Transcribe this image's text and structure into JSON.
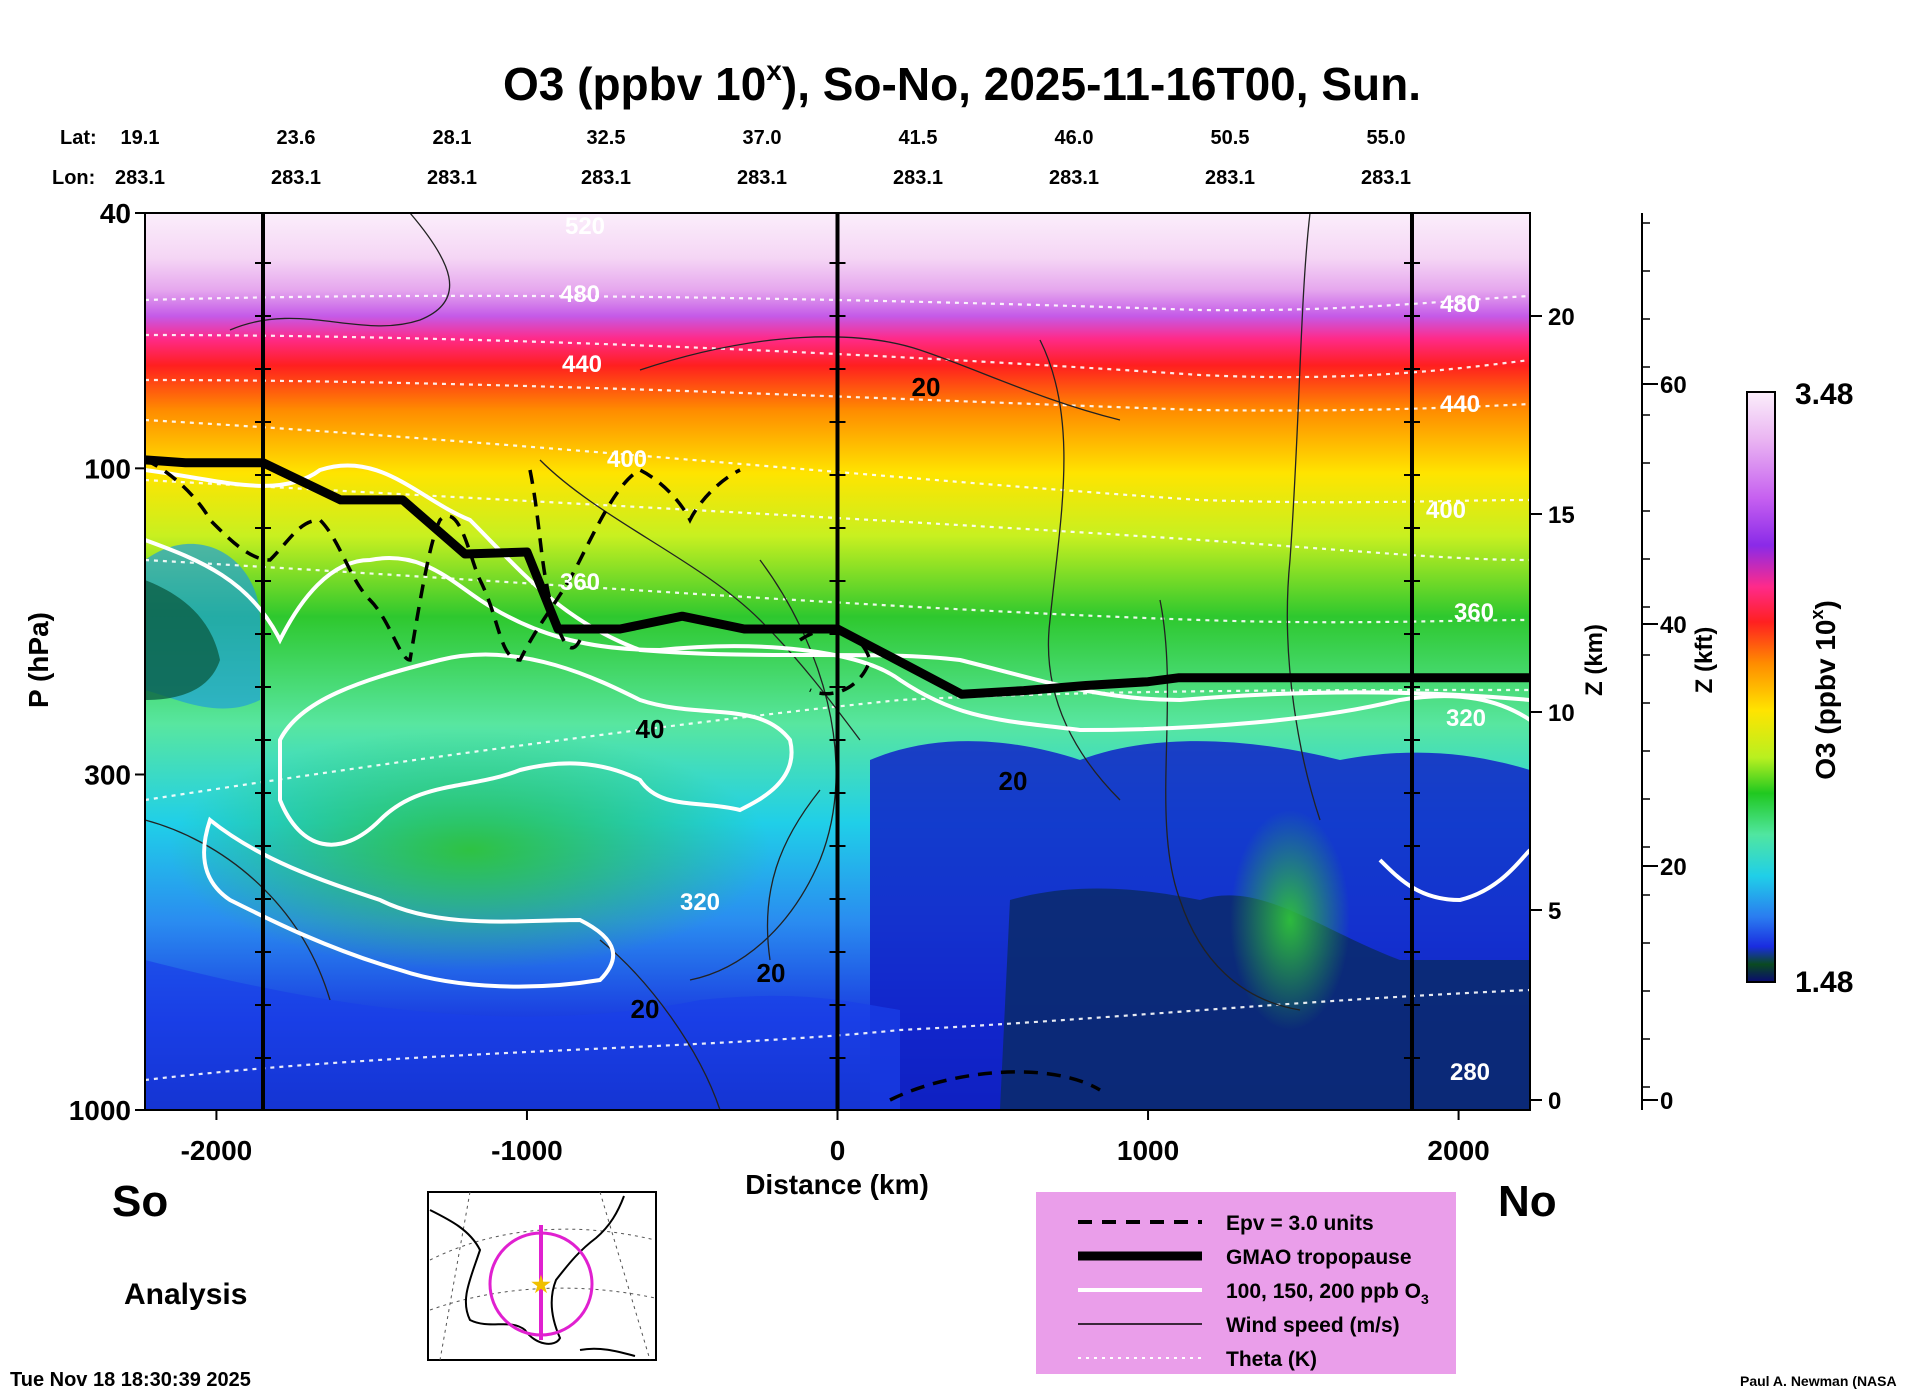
{
  "chart_data": {
    "type": "contour",
    "title": "O3 (ppbv 10",
    "title_sup": "x",
    "title_rest": "), So-No, 2025-11-16T00, Sun.",
    "lat_label": "Lat:",
    "lon_label": "Lon:",
    "lats": [
      "19.1",
      "23.6",
      "28.1",
      "32.5",
      "37.0",
      "41.5",
      "46.0",
      "50.5",
      "55.0"
    ],
    "lons": [
      "283.1",
      "283.1",
      "283.1",
      "283.1",
      "283.1",
      "283.1",
      "283.1",
      "283.1",
      "283.1"
    ],
    "xlabel": "Distance (km)",
    "ylabel": "P (hPa)",
    "xlim": [
      -2230,
      2230
    ],
    "x_ticks": [
      -2000,
      -1000,
      0,
      1000,
      2000
    ],
    "x_tick_labels": [
      "-2000",
      "-1000",
      "0",
      "1000",
      "2000"
    ],
    "ylim": [
      1000,
      40
    ],
    "y_ticks": [
      1000,
      300,
      100,
      40
    ],
    "y_tick_labels": [
      "1000",
      "300",
      "100",
      "40"
    ],
    "z_km_label": "Z (km)",
    "z_km_ticks": [
      "0",
      "5",
      "10",
      "15",
      "20"
    ],
    "z_kft_label": "Z (kft)",
    "z_kft_ticks": [
      "0",
      "20",
      "40",
      "60"
    ],
    "colorbar_label": "O3 (ppbv 10",
    "colorbar_sup": "x",
    "colorbar_close": ")",
    "colorbar_max": "3.48",
    "colorbar_min": "1.48",
    "colorbar_range": [
      1.48,
      3.48
    ],
    "vertical_markers_km": [
      -1850,
      0,
      1850
    ],
    "tropopause": [
      [
        -2230,
        97
      ],
      [
        -2100,
        98
      ],
      [
        -1850,
        98
      ],
      [
        -1600,
        112
      ],
      [
        -1400,
        112
      ],
      [
        -1200,
        136
      ],
      [
        -1000,
        135
      ],
      [
        -900,
        178
      ],
      [
        -700,
        178
      ],
      [
        -500,
        170
      ],
      [
        -300,
        178
      ],
      [
        0,
        178
      ],
      [
        200,
        200
      ],
      [
        400,
        225
      ],
      [
        600,
        222
      ],
      [
        800,
        218
      ],
      [
        1000,
        215
      ],
      [
        1100,
        212
      ],
      [
        1400,
        212
      ],
      [
        1800,
        212
      ],
      [
        2230,
        212
      ]
    ],
    "theta_labels": [
      "520",
      "480",
      "440",
      "400",
      "360",
      "320",
      "280"
    ],
    "theta_labels_right": [
      "480",
      "440",
      "400",
      "360",
      "320",
      "280"
    ],
    "wind_labels": [
      "20",
      "20",
      "40",
      "20",
      "20"
    ],
    "endpoints": {
      "south": "So",
      "north": "No"
    },
    "mode_label": "Analysis",
    "legend": [
      {
        "label": "Epv = 3.0 units",
        "style": "dashed"
      },
      {
        "label": "GMAO tropopause",
        "style": "thick"
      },
      {
        "label": "100, 150, 200 ppb O",
        "sub": "3",
        "style": "white"
      },
      {
        "label": "Wind speed (m/s)",
        "style": "thin"
      },
      {
        "label": "Theta (K)",
        "style": "dotted"
      }
    ],
    "timestamp": "Tue Nov 18 18:30:39 2025",
    "credit": "Paul A. Newman (NASA"
  }
}
